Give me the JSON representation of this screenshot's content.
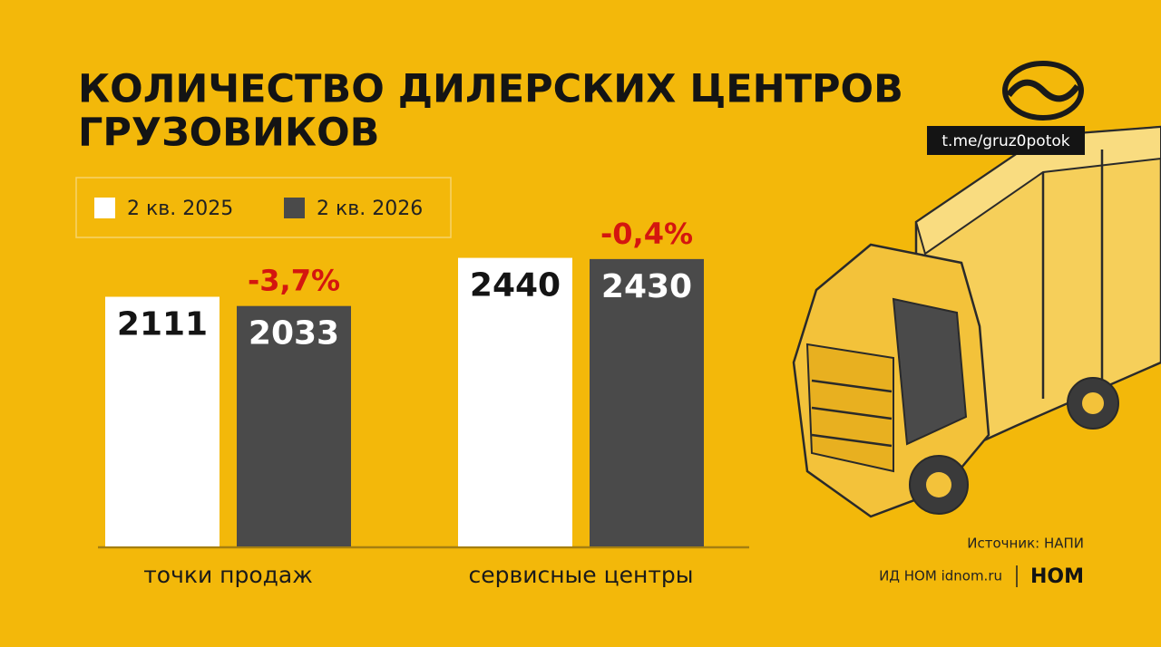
{
  "chart_data": {
    "type": "bar",
    "title": [
      "КОЛИЧЕСТВО ДИЛЕРСКИХ ЦЕНТРОВ",
      "ГРУЗОВИКОВ"
    ],
    "categories": [
      "точки продаж",
      "сервисные центры"
    ],
    "series": [
      {
        "name": "2 кв. 2025",
        "color": "#ffffff",
        "values": [
          2111,
          2440
        ]
      },
      {
        "name": "2 кв. 2026",
        "color": "#4a4a4a",
        "values": [
          2033,
          2430
        ]
      }
    ],
    "annotations": [
      "-3,7%",
      "-0,4%"
    ],
    "source": "Источник: НАПИ",
    "channel": "t.me/gruz0potok",
    "publisher": "ИД НОМ idnom.ru",
    "brand": "НОМ"
  }
}
